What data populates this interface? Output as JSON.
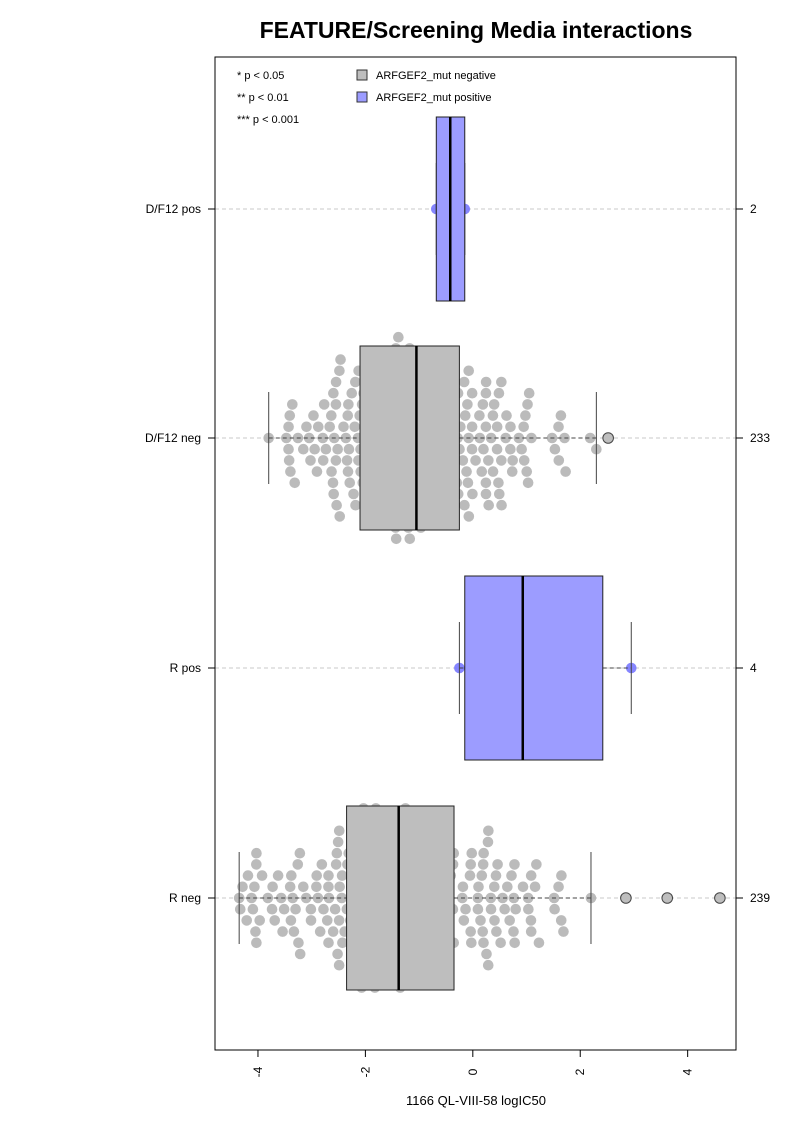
{
  "chart_data": {
    "type": "boxplot",
    "title": "FEATURE/Screening Media interactions",
    "xlabel": "1166 QL-VIII-58 logIC50",
    "xlim": [
      -4.8,
      4.9
    ],
    "xticks": [
      -4,
      -2,
      0,
      2,
      4
    ],
    "xtick_labels": [
      "-4",
      "-2",
      "0",
      "2",
      "4"
    ],
    "grid": "dashed horizontal lines at each group",
    "significance_legend": [
      "* p < 0.05",
      "** p < 0.01",
      "*** p < 0.001"
    ],
    "legend": [
      {
        "label": "ARFGEF2_mut negative",
        "color": "#bebebe"
      },
      {
        "label": "ARFGEF2_mut positive",
        "color": "#9c9cff"
      }
    ],
    "colors": {
      "negative_box": "#bebebe",
      "positive_box": "#9c9cff",
      "negative_point": "#b4b4b4",
      "positive_point": "#7878ff",
      "outlier_fill": "#bebebe"
    },
    "groups": [
      {
        "label": "D/F12 pos",
        "n": "2",
        "mutation": "positive",
        "whisker_low": -0.68,
        "q1": -0.68,
        "median": -0.42,
        "q3": -0.15,
        "whisker_high": -0.15,
        "points": [
          -0.68,
          -0.15
        ],
        "outliers": []
      },
      {
        "label": "D/F12 neg",
        "n": "233",
        "mutation": "negative",
        "whisker_low": -3.8,
        "q1": -2.1,
        "median": -1.05,
        "q3": -0.25,
        "whisker_high": 2.3,
        "points": [],
        "outliers": [
          2.52
        ]
      },
      {
        "label": "R pos",
        "n": "4",
        "mutation": "positive",
        "whisker_low": -0.25,
        "q1": -0.15,
        "median": 0.93,
        "q3": 2.42,
        "whisker_high": 2.95,
        "points": [
          -0.25,
          -0.05,
          1.9,
          2.95
        ],
        "outliers": []
      },
      {
        "label": "R neg",
        "n": "239",
        "mutation": "negative",
        "whisker_low": -4.35,
        "q1": -2.35,
        "median": -1.38,
        "q3": -0.35,
        "whisker_high": 2.2,
        "points": [],
        "outliers": [
          2.85,
          3.62,
          4.6
        ]
      }
    ]
  }
}
